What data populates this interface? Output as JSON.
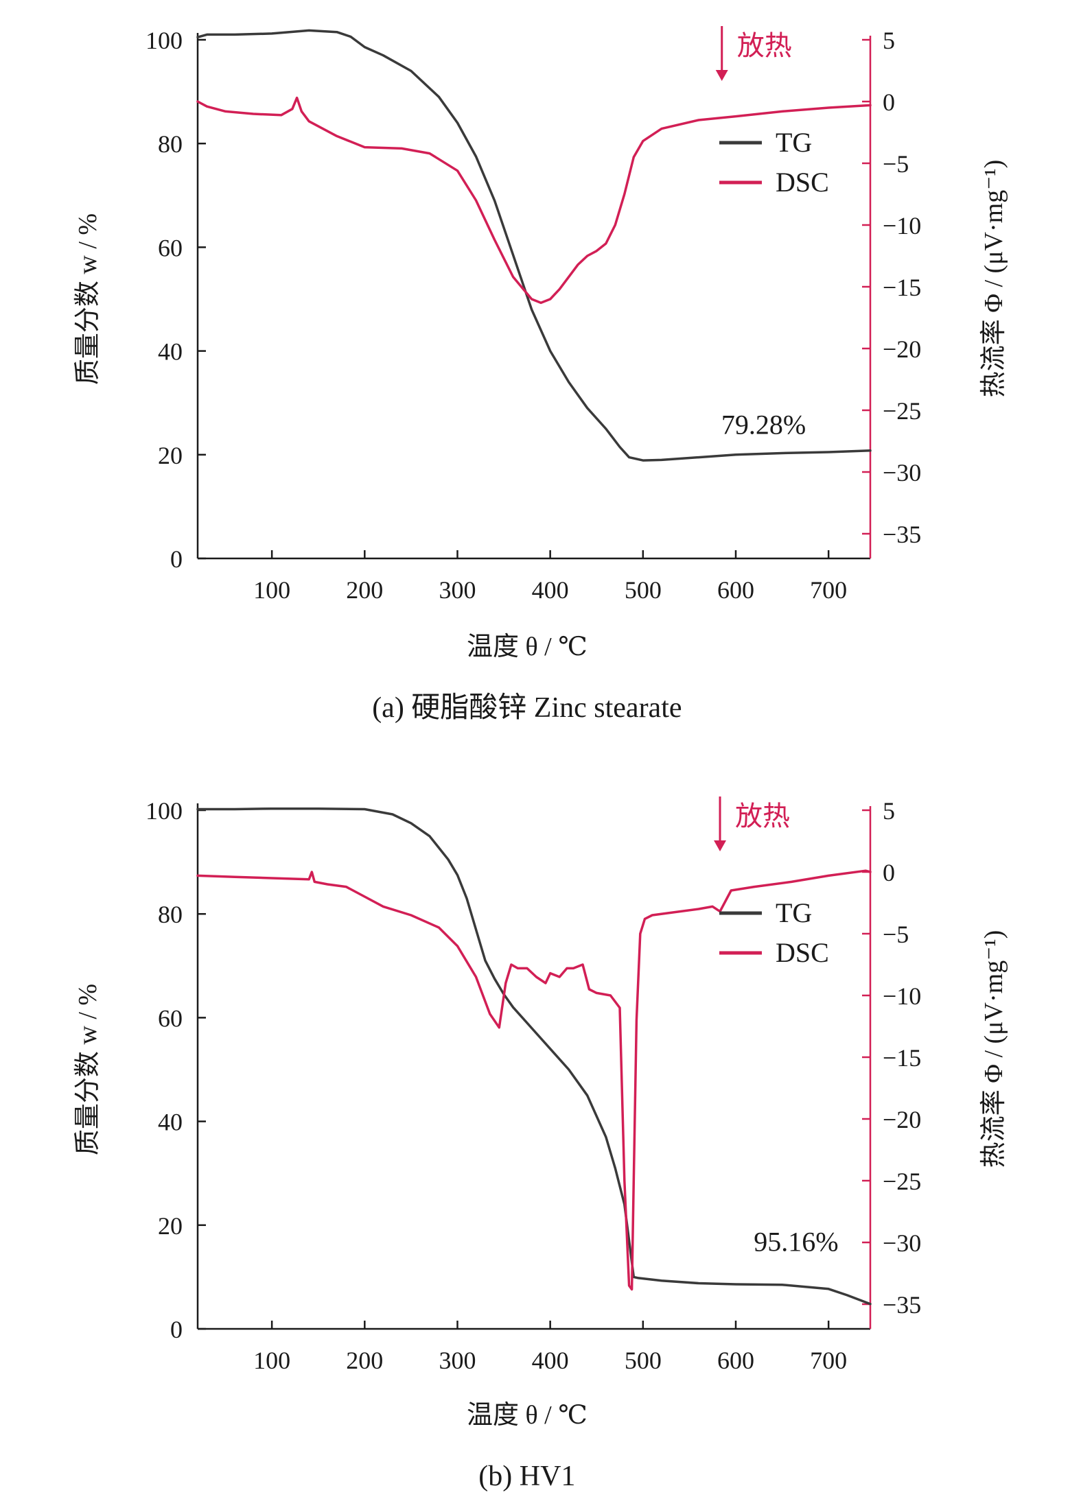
{
  "colors": {
    "tg": "#3a3a3a",
    "dsc": "#d21f55",
    "axis": "#1a1a1a"
  },
  "chart_data": [
    {
      "type": "line",
      "caption": "(a) 硬脂酸锌 Zinc stearate",
      "xlabel": "温度 θ / ℃",
      "ylabel_left": "质量分数 w / %",
      "ylabel_right": "热流率 Φ / (μV·mg⁻¹)",
      "xlim": [
        20,
        745
      ],
      "ylim_left": [
        0,
        100
      ],
      "ylim_right": [
        -37,
        5
      ],
      "x_ticks": [
        100,
        200,
        300,
        400,
        500,
        600,
        700
      ],
      "y_left_ticks": [
        0,
        20,
        40,
        60,
        80,
        100
      ],
      "y_right_ticks": [
        5,
        0,
        -5,
        -10,
        -15,
        -20,
        -25,
        -30,
        -35
      ],
      "legend": [
        "TG",
        "DSC"
      ],
      "legend_position": "upper-right",
      "exotherm_label": "放热",
      "exotherm_x": 585,
      "annotation": "79.28%",
      "annotation_pos": [
        630,
        24
      ],
      "series": [
        {
          "name": "TG",
          "axis": "left",
          "x": [
            20,
            30,
            60,
            100,
            140,
            170,
            185,
            200,
            220,
            250,
            280,
            300,
            320,
            340,
            360,
            380,
            400,
            420,
            440,
            460,
            475,
            485,
            500,
            520,
            560,
            600,
            650,
            700,
            745
          ],
          "y": [
            100.5,
            101.0,
            101.0,
            101.2,
            101.8,
            101.5,
            100.6,
            98.6,
            97.0,
            94.0,
            89.0,
            84.0,
            77.5,
            69.0,
            58.5,
            48.0,
            40.0,
            34.0,
            29.0,
            25.0,
            21.5,
            19.5,
            18.9,
            19.0,
            19.5,
            20.0,
            20.3,
            20.5,
            20.8
          ]
        },
        {
          "name": "DSC",
          "axis": "right",
          "x": [
            20,
            30,
            50,
            80,
            110,
            122,
            127,
            132,
            140,
            170,
            200,
            240,
            270,
            300,
            320,
            340,
            360,
            380,
            390,
            400,
            410,
            420,
            430,
            440,
            450,
            460,
            470,
            480,
            490,
            500,
            520,
            560,
            600,
            650,
            700,
            745
          ],
          "y": [
            0.0,
            -0.4,
            -0.8,
            -1.0,
            -1.1,
            -0.6,
            0.3,
            -0.8,
            -1.6,
            -2.8,
            -3.7,
            -3.8,
            -4.2,
            -5.6,
            -8.0,
            -11.2,
            -14.2,
            -16.0,
            -16.3,
            -16.0,
            -15.2,
            -14.2,
            -13.2,
            -12.5,
            -12.1,
            -11.5,
            -10.0,
            -7.5,
            -4.5,
            -3.2,
            -2.2,
            -1.5,
            -1.2,
            -0.8,
            -0.5,
            -0.3
          ]
        }
      ]
    },
    {
      "type": "line",
      "caption": "(b) HV1",
      "xlabel": "温度 θ / ℃",
      "ylabel_left": "质量分数 w / %",
      "ylabel_right": "热流率 Φ / (μV·mg⁻¹)",
      "xlim": [
        20,
        745
      ],
      "ylim_left": [
        0,
        100
      ],
      "ylim_right": [
        -37,
        5
      ],
      "x_ticks": [
        100,
        200,
        300,
        400,
        500,
        600,
        700
      ],
      "y_left_ticks": [
        0,
        20,
        40,
        60,
        80,
        100
      ],
      "y_right_ticks": [
        5,
        0,
        -5,
        -10,
        -15,
        -20,
        -25,
        -30,
        -35
      ],
      "legend": [
        "TG",
        "DSC"
      ],
      "legend_position": "upper-right",
      "exotherm_label": "放热",
      "exotherm_x": 583,
      "annotation": "95.16%",
      "annotation_pos": [
        665,
        15
      ],
      "series": [
        {
          "name": "TG",
          "axis": "left",
          "x": [
            20,
            60,
            100,
            150,
            200,
            230,
            250,
            270,
            290,
            300,
            310,
            320,
            330,
            340,
            350,
            360,
            380,
            400,
            420,
            440,
            460,
            470,
            480,
            485,
            490,
            495,
            520,
            560,
            600,
            650,
            700,
            720,
            745
          ],
          "y": [
            100.2,
            100.2,
            100.3,
            100.3,
            100.2,
            99.2,
            97.5,
            95.0,
            90.5,
            87.5,
            83.0,
            77.0,
            71.0,
            67.5,
            64.5,
            62.0,
            58.0,
            54.0,
            50.0,
            45.0,
            37.0,
            31.0,
            24.0,
            17.0,
            10.0,
            9.8,
            9.3,
            8.8,
            8.6,
            8.5,
            7.7,
            6.5,
            4.8
          ]
        },
        {
          "name": "DSC",
          "axis": "right",
          "x": [
            20,
            60,
            100,
            140,
            143,
            146,
            160,
            180,
            200,
            220,
            250,
            280,
            300,
            320,
            335,
            345,
            352,
            358,
            365,
            375,
            385,
            395,
            400,
            410,
            418,
            425,
            435,
            442,
            450,
            465,
            475,
            480,
            485,
            488,
            490,
            493,
            497,
            502,
            510,
            530,
            560,
            575,
            583,
            595,
            620,
            660,
            700,
            740,
            745
          ],
          "y": [
            -0.3,
            -0.4,
            -0.5,
            -0.6,
            0.0,
            -0.8,
            -1.0,
            -1.2,
            -2.0,
            -2.8,
            -3.5,
            -4.5,
            -6.0,
            -8.5,
            -11.5,
            -12.6,
            -9.0,
            -7.5,
            -7.8,
            -7.8,
            -8.5,
            -9.0,
            -8.2,
            -8.5,
            -7.8,
            -7.8,
            -7.5,
            -9.5,
            -9.8,
            -10.0,
            -11.0,
            -25.0,
            -33.5,
            -33.8,
            -25.0,
            -12.0,
            -5.0,
            -3.8,
            -3.5,
            -3.3,
            -3.0,
            -2.8,
            -3.2,
            -1.5,
            -1.2,
            -0.8,
            -0.3,
            0.1,
            0.0
          ]
        }
      ]
    }
  ]
}
